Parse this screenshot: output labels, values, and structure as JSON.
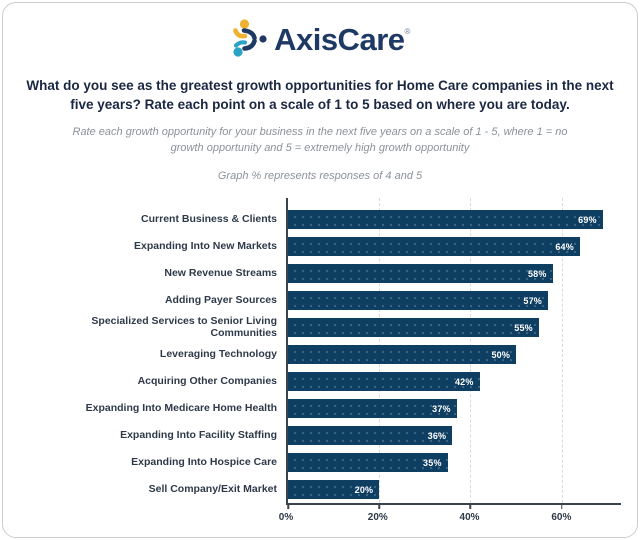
{
  "logo": {
    "brand": "AxisCare",
    "registered": "®",
    "colors": {
      "navy": "#1e3a64",
      "gold": "#eeb230",
      "teal": "#2ba3c4"
    }
  },
  "title": "What do you see as the greatest growth opportunities for Home Care companies in the next five years? Rate each point on a scale of 1 to 5 based on where you are today.",
  "subtitle": "Rate each growth opportunity for your business in the next five years on a scale of 1 - 5, where 1 = no growth opportunity and 5 = extremely high growth opportunity",
  "note": "Graph % represents responses of 4 and 5",
  "chart_data": {
    "type": "bar",
    "orientation": "horizontal",
    "title": "",
    "xlabel": "",
    "ylabel": "",
    "categories": [
      "Current Business & Clients",
      "Expanding Into New Markets",
      "New Revenue Streams",
      "Adding Payer Sources",
      "Specialized Services to Senior Living Communities",
      "Leveraging Technology",
      "Acquiring Other Companies",
      "Expanding Into Medicare Home Health",
      "Expanding Into Facility Staffing",
      "Expanding Into Hospice Care",
      "Sell Company/Exit Market"
    ],
    "values": [
      69,
      64,
      58,
      57,
      55,
      50,
      42,
      37,
      36,
      35,
      20
    ],
    "value_labels": [
      "69%",
      "64%",
      "58%",
      "57%",
      "55%",
      "50%",
      "42%",
      "37%",
      "36%",
      "35%",
      "20%"
    ],
    "xlim": [
      0,
      73
    ],
    "xticks": [
      {
        "value": 0,
        "label": "0%"
      },
      {
        "value": 20,
        "label": "20%"
      },
      {
        "value": 40,
        "label": "40%"
      },
      {
        "value": 60,
        "label": "60%"
      }
    ],
    "grid": "vertical dashed gridlines at 20/40/60, solid axis at 0",
    "legend": "none",
    "bar_color": "#0e3e62",
    "bar_texture": "subtle white dot grid",
    "value_label_position": "inside-right, white"
  }
}
